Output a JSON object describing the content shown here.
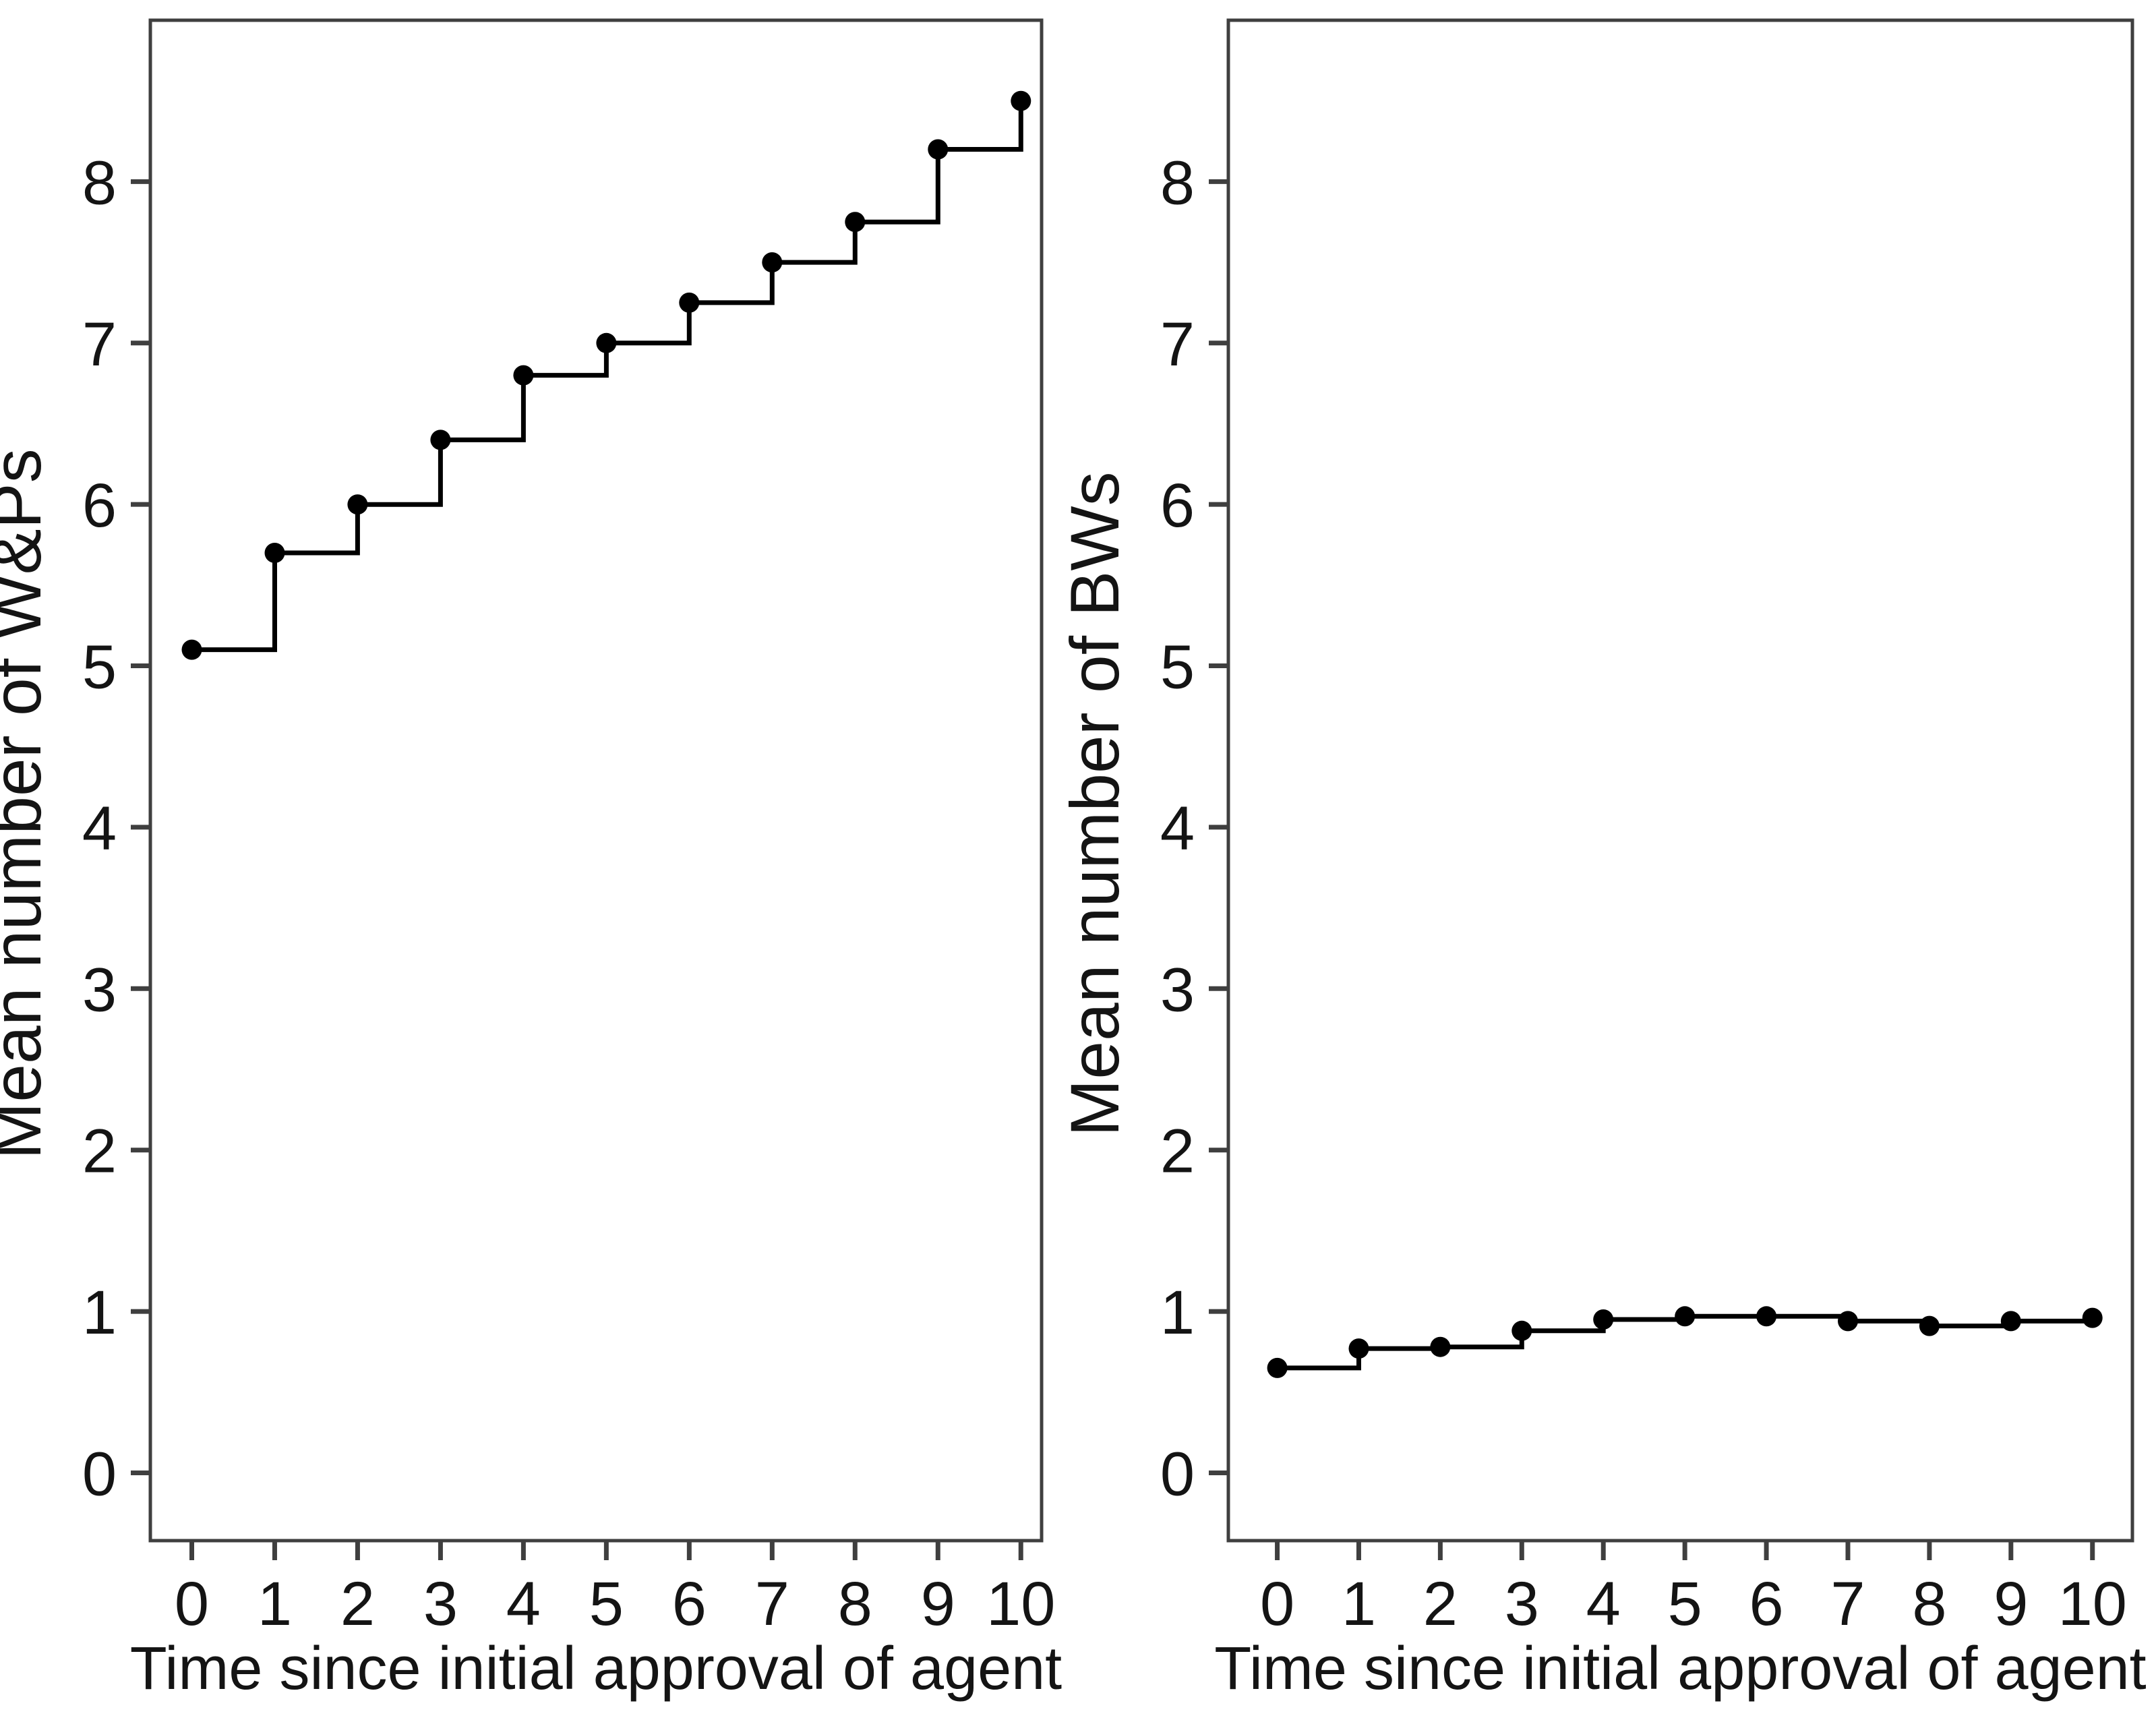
{
  "figure": {
    "background_color": "#ffffff",
    "axis_color": "#3f3f3f",
    "data_color": "#000000",
    "text_color": "#141414"
  },
  "chart_data": [
    {
      "type": "line",
      "line_style": "step-after",
      "marker": "filled-circle",
      "panel": "left",
      "xlabel": "Time since initial approval of agent",
      "ylabel": "Mean number of W&Ps",
      "x": [
        0,
        1,
        2,
        3,
        4,
        5,
        6,
        7,
        8,
        9,
        10
      ],
      "values": [
        5.1,
        5.7,
        6.0,
        6.4,
        6.8,
        7.0,
        7.25,
        7.5,
        7.75,
        8.2,
        8.5
      ],
      "xtick_values": [
        0,
        1,
        2,
        3,
        4,
        5,
        6,
        7,
        8,
        9,
        10
      ],
      "xticks": [
        "0",
        "1",
        "2",
        "3",
        "4",
        "5",
        "6",
        "7",
        "8",
        "9",
        "10"
      ],
      "ytick_values": [
        0,
        1,
        2,
        3,
        4,
        5,
        6,
        7,
        8
      ],
      "yticks": [
        "0",
        "1",
        "2",
        "3",
        "4",
        "5",
        "6",
        "7",
        "8"
      ],
      "xlim": [
        -0.5,
        10.25
      ],
      "ylim": [
        -0.42,
        9.0
      ],
      "grid": false,
      "legend": null
    },
    {
      "type": "line",
      "line_style": "step-after",
      "marker": "filled-circle",
      "panel": "right",
      "xlabel": "Time since initial approval of agent",
      "ylabel": "Mean number of BWs",
      "x": [
        0,
        1,
        2,
        3,
        4,
        5,
        6,
        7,
        8,
        9,
        10
      ],
      "values": [
        0.65,
        0.77,
        0.78,
        0.88,
        0.95,
        0.97,
        0.97,
        0.94,
        0.91,
        0.94,
        0.96
      ],
      "xtick_values": [
        0,
        1,
        2,
        3,
        4,
        5,
        6,
        7,
        8,
        9,
        10
      ],
      "xticks": [
        "0",
        "1",
        "2",
        "3",
        "4",
        "5",
        "6",
        "7",
        "8",
        "9",
        "10"
      ],
      "ytick_values": [
        0,
        1,
        2,
        3,
        4,
        5,
        6,
        7,
        8
      ],
      "yticks": [
        "0",
        "1",
        "2",
        "3",
        "4",
        "5",
        "6",
        "7",
        "8"
      ],
      "xlim": [
        -0.6,
        10.49
      ],
      "ylim": [
        -0.42,
        9.0
      ],
      "grid": false,
      "legend": null
    }
  ]
}
